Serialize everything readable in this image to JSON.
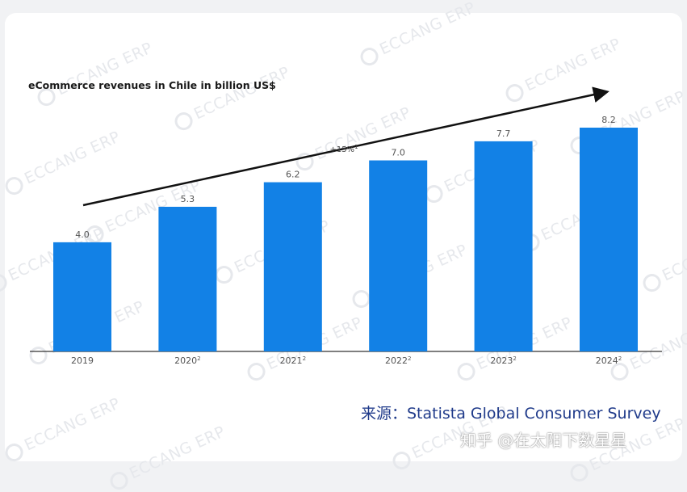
{
  "chart_data": {
    "type": "bar",
    "title": "eCommerce revenues in Chile in billion US$",
    "categories": [
      "2019",
      "2020",
      "2021",
      "2022",
      "2023",
      "2024"
    ],
    "category_superscripts": [
      "",
      "2",
      "2",
      "2",
      "2",
      "2"
    ],
    "values": [
      4.0,
      5.3,
      6.2,
      7.0,
      7.7,
      8.2
    ],
    "value_labels": [
      "4.0",
      "5.3",
      "6.2",
      "7.0",
      "7.7",
      "8.2"
    ],
    "annotation": "+15%",
    "annotation_superscript": "1",
    "ylim": [
      0,
      8.2
    ],
    "grid": false,
    "bar_color": "#1281e6"
  },
  "source_text": "来源：Statista Global Consumer Survey",
  "credit_text": "知乎 @在太阳下数星星",
  "watermark_text": "ECCANG ERP",
  "colors": {
    "source": "#1f3a8a",
    "card": "#ffffff",
    "background": "#f1f2f4"
  }
}
